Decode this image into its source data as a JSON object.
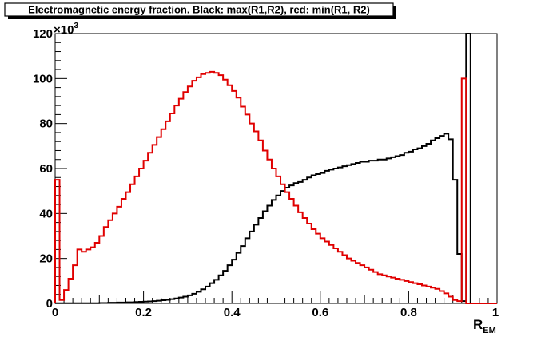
{
  "chart_data": {
    "type": "line",
    "title": "Electromagnetic energy fraction. Black: max(R1,R2), red: min(R1, R2)",
    "xlabel_main": "R",
    "xlabel_sub": "EM",
    "ylabel": "",
    "y_multiplier_base": "×10",
    "y_multiplier_exp": "3",
    "xlim": [
      0,
      1
    ],
    "ylim": [
      0,
      120
    ],
    "x_ticks": [
      0,
      0.2,
      0.4,
      0.6,
      0.8,
      1
    ],
    "x_tick_labels": [
      "0",
      "0.2",
      "0.4",
      "0.6",
      "0.8",
      "1"
    ],
    "y_ticks": [
      0,
      20,
      40,
      60,
      80,
      100,
      120
    ],
    "y_tick_labels": [
      "0",
      "20",
      "40",
      "60",
      "80",
      "100",
      "120"
    ],
    "bin_width": 0.01,
    "grid": false,
    "legend": "none",
    "series": [
      {
        "name": "max(R1,R2)",
        "color": "#000000",
        "style": "step",
        "values": [
          0.1,
          0.1,
          0.1,
          0.1,
          0.1,
          0.1,
          0.1,
          0.1,
          0.1,
          0.1,
          0.2,
          0.2,
          0.3,
          0.3,
          0.4,
          0.4,
          0.5,
          0.5,
          0.6,
          0.7,
          0.8,
          0.9,
          1.0,
          1.2,
          1.4,
          1.6,
          1.9,
          2.2,
          2.6,
          3.0,
          3.6,
          4.3,
          5.2,
          6.3,
          7.5,
          9.0,
          10.5,
          12.5,
          14.5,
          17.0,
          19.5,
          22.5,
          25.5,
          29.0,
          32.0,
          35.0,
          38.0,
          41.0,
          43.5,
          46.0,
          48.0,
          50.0,
          51.5,
          52.5,
          53.5,
          54.0,
          55.0,
          56.0,
          57.0,
          57.5,
          58.0,
          59.0,
          59.5,
          60.0,
          60.5,
          61.0,
          61.5,
          62.0,
          62.5,
          63.0,
          63.0,
          63.5,
          63.5,
          64.0,
          64.0,
          64.5,
          65.0,
          65.5,
          66.0,
          67.0,
          67.5,
          68.5,
          69.0,
          70.0,
          71.0,
          72.5,
          73.5,
          74.5,
          75.5,
          73.0,
          55.0,
          22.0,
          1.0,
          120,
          0,
          0,
          0,
          0,
          0,
          0
        ]
      },
      {
        "name": "min(R1,R2)",
        "color": "#e00000",
        "style": "step",
        "values": [
          55.0,
          1.5,
          6.0,
          11.0,
          17.0,
          24.0,
          23.0,
          24.0,
          25.0,
          27.0,
          30.0,
          34.0,
          37.0,
          40.0,
          43.0,
          46.5,
          49.5,
          53.0,
          56.5,
          60.0,
          63.5,
          67.0,
          70.5,
          74.0,
          77.5,
          81.0,
          84.5,
          88.0,
          91.0,
          94.0,
          96.5,
          99.0,
          100.5,
          102.0,
          102.5,
          103.0,
          102.5,
          101.5,
          99.5,
          97.0,
          94.5,
          91.5,
          87.5,
          84.0,
          80.0,
          76.5,
          72.5,
          68.0,
          64.0,
          60.0,
          56.5,
          53.0,
          49.5,
          46.5,
          43.5,
          40.5,
          38.0,
          35.5,
          33.0,
          31.0,
          29.0,
          27.5,
          26.0,
          24.5,
          23.0,
          21.5,
          20.0,
          19.0,
          18.0,
          17.0,
          16.0,
          15.0,
          14.0,
          13.0,
          12.5,
          12.0,
          11.5,
          11.0,
          10.5,
          10.0,
          9.5,
          9.0,
          8.5,
          8.0,
          7.5,
          7.0,
          6.5,
          5.5,
          4.5,
          3.0,
          1.5,
          1.0,
          100,
          0,
          0,
          0,
          0,
          0,
          0,
          0
        ]
      }
    ]
  }
}
